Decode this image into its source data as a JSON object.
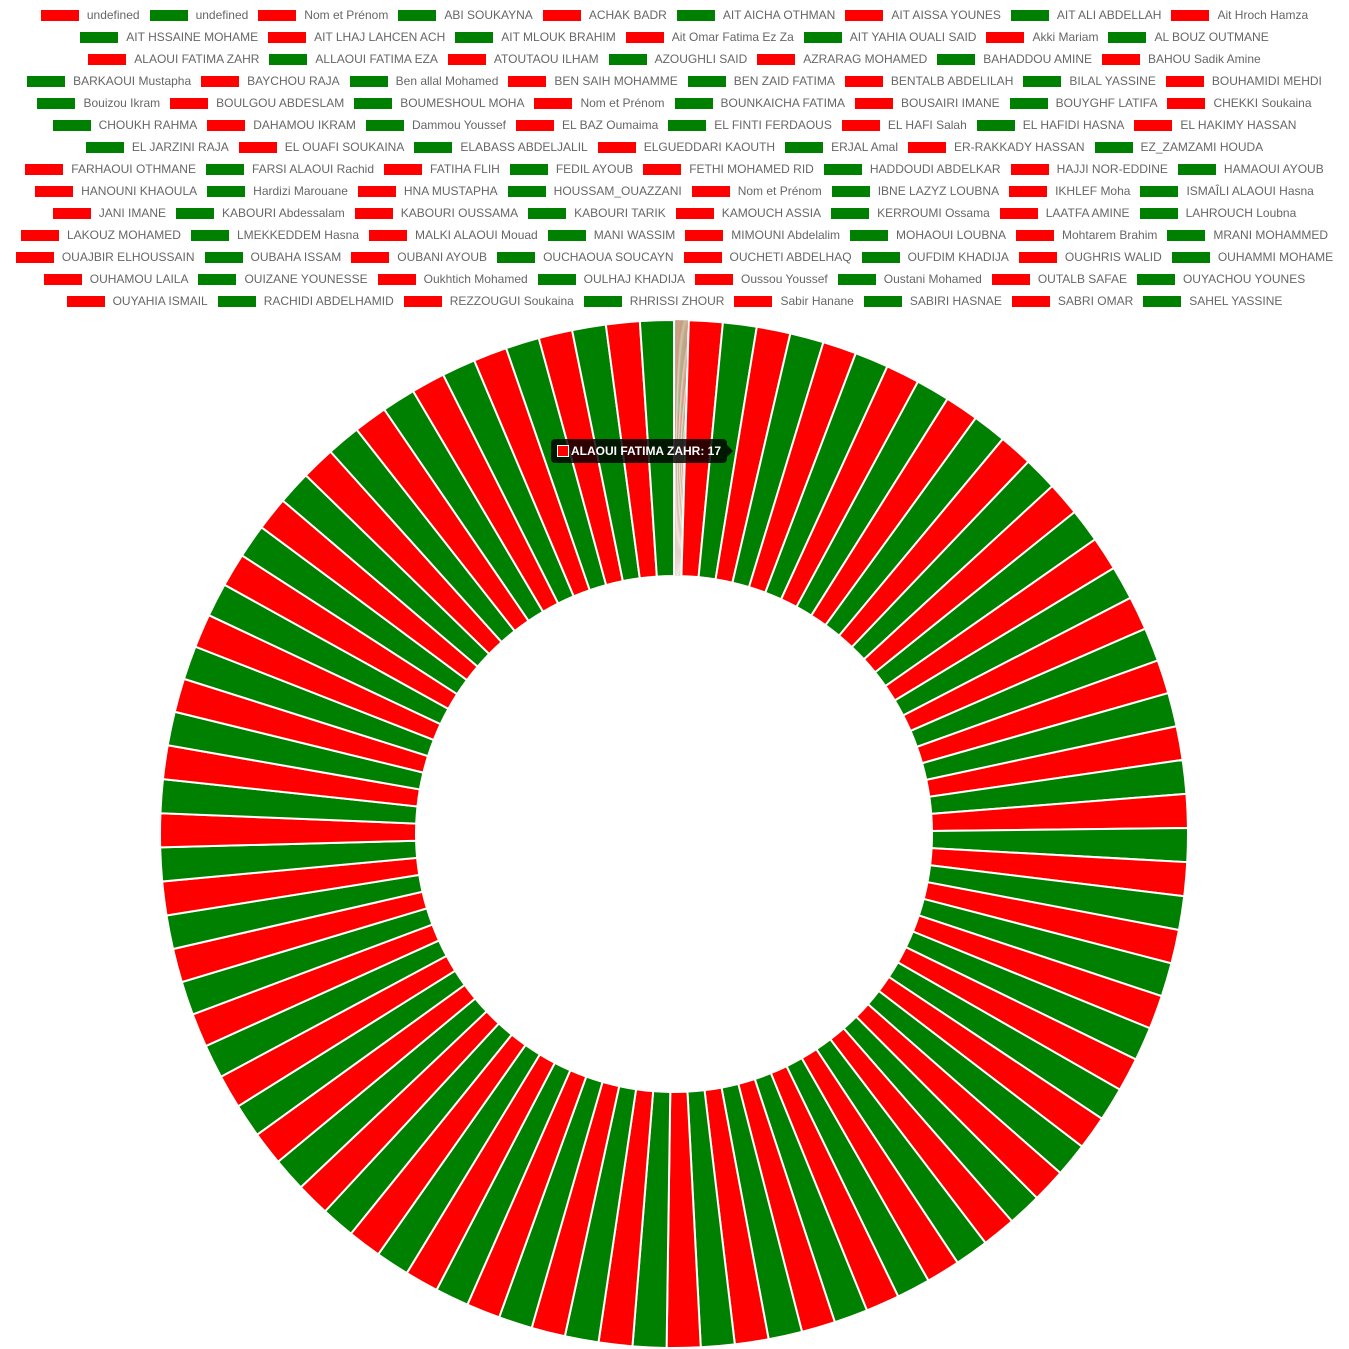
{
  "colors": {
    "red": "#ff0000",
    "green": "#008000",
    "tooltip_bg": "#000000"
  },
  "tooltip": {
    "label": "ALAOUI FATIMA ZAHR: 17",
    "series_color": "#ff0000"
  },
  "chart_data": {
    "type": "doughnut",
    "legend_position": "top",
    "categories": [
      "undefined",
      "undefined",
      "Nom et Prénom",
      "ABI SOUKAYNA",
      "ACHAK BADR",
      "AIT AICHA OTHMAN",
      "AIT AISSA YOUNES",
      "AIT ALI ABDELLAH",
      "Ait Hroch Hamza",
      "AIT HSSAINE MOHAME",
      "AIT LHAJ  LAHCEN ACH",
      "AIT MLOUK BRAHIM",
      "Ait Omar Fatima Ez Za",
      "AIT YAHIA OUALI SAID",
      "Akki Mariam",
      "AL BOUZ OUTMANE",
      "ALAOUI FATIMA ZAHR",
      "ALLAOUI FATIMA EZA",
      "ATOUTAOU ILHAM",
      "AZOUGHLI SAID",
      "AZRARAG MOHAMED",
      "BAHADDOU AMINE",
      "BAHOU Sadik Amine",
      "BARKAOUI Mustapha",
      "BAYCHOU RAJA",
      "Ben allal Mohamed",
      "BEN SAIH MOHAMME",
      "BEN ZAID FATIMA",
      "BENTALB ABDELILAH",
      "BILAL YASSINE",
      "BOUHAMIDI MEHDI",
      "Bouizou Ikram",
      "BOULGOU ABDESLAM",
      "BOUMESHOUL MOHA",
      "Nom et Prénom",
      "BOUNKAICHA FATIMA",
      "BOUSAIRI IMANE",
      "BOUYGHF LATIFA",
      "CHEKKI Soukaina",
      "CHOUKH RAHMA",
      "DAHAMOU IKRAM",
      "Dammou Youssef",
      "EL BAZ Oumaima",
      "EL FINTI FERDAOUS",
      "EL HAFI Salah",
      "EL HAFIDI HASNA",
      "EL HAKIMY HASSAN",
      "EL JARZINI RAJA",
      "EL OUAFI SOUKAINA",
      "ELABASS ABDELJALIL",
      "ELGUEDDARI KAOUTH",
      "ERJAL  Amal",
      "ER-RAKKADY HASSAN",
      "EZ_ZAMZAMI HOUDA",
      "FARHAOUI OTHMANE",
      "FARSI ALAOUI Rachid",
      "FATIHA FLIH",
      "FEDIL AYOUB",
      "FETHI MOHAMED RID",
      "HADDOUDI ABDELKAR",
      "HAJJI NOR-EDDINE",
      "HAMAOUI AYOUB",
      "HANOUNI KHAOULA",
      "Hardizi Marouane",
      "HNA MUSTAPHA",
      "HOUSSAM_OUAZZANI",
      "Nom et Prénom",
      "IBNE LAZYZ LOUBNA",
      "IKHLEF Moha",
      "ISMAÎLI ALAOUI Hasna",
      "JANI IMANE",
      "KABOURI Abdessalam",
      "KABOURI OUSSAMA",
      "KABOURI TARIK",
      "KAMOUCH ASSIA",
      "KERROUMI  Ossama",
      "LAATFA AMINE",
      "LAHROUCH Loubna",
      "LAKOUZ MOHAMED",
      "LMEKKEDDEM Hasna",
      "MALKI ALAOUI Mouad",
      "MANI WASSIM",
      "MIMOUNI Abdelalim",
      "MOHAOUI LOUBNA",
      "Mohtarem Brahim",
      "MRANI MOHAMMED",
      "OUAJBIR ELHOUSSAIN",
      "OUBAHA ISSAM",
      "OUBANI AYOUB",
      "OUCHAOUA SOUCAYN",
      "OUCHETI ABDELHAQ",
      "OUFDIM KHADIJA",
      "OUGHRIS WALID",
      "OUHAMMI MOHAME",
      "OUHAMOU LAILA",
      "OUIZANE YOUNESSE",
      "Oukhtich Mohamed",
      "OULHAJ KHADIJA",
      "Oussou Youssef",
      "Oustani Mohamed",
      "OUTALB SAFAE",
      "OUYACHOU YOUNES",
      "OUYAHIA ISMAIL",
      "RACHIDI ABDELHAMID",
      "REZZOUGUI Soukaina",
      "RHRISSI ZHOUR",
      "Sabir Hanane",
      "SABIRI HASNAE",
      "SABRI OMAR",
      "SAHEL YASSINE"
    ],
    "values": [
      0,
      0,
      0,
      0,
      0,
      0,
      0,
      0,
      0,
      0,
      0,
      0,
      0,
      0,
      0,
      0,
      17,
      17,
      17,
      17,
      17,
      17,
      17,
      17,
      17,
      17,
      17,
      17,
      17,
      17,
      17,
      17,
      17,
      17,
      17,
      17,
      17,
      17,
      17,
      17,
      17,
      17,
      17,
      17,
      17,
      17,
      17,
      17,
      17,
      17,
      17,
      17,
      17,
      17,
      17,
      17,
      17,
      17,
      17,
      17,
      17,
      17,
      17,
      17,
      17,
      17,
      17,
      17,
      17,
      17,
      17,
      17,
      17,
      17,
      17,
      17,
      17,
      17,
      17,
      17,
      17,
      17,
      17,
      17,
      17,
      17,
      17,
      17,
      17,
      17,
      17,
      17,
      17,
      17,
      17,
      17,
      17,
      17,
      17,
      17,
      17,
      17,
      17,
      17,
      17,
      17,
      17,
      17,
      17,
      17
    ],
    "series_colors": [
      "#ff0000",
      "#008000"
    ],
    "segment_border_color": "#ffffff"
  }
}
